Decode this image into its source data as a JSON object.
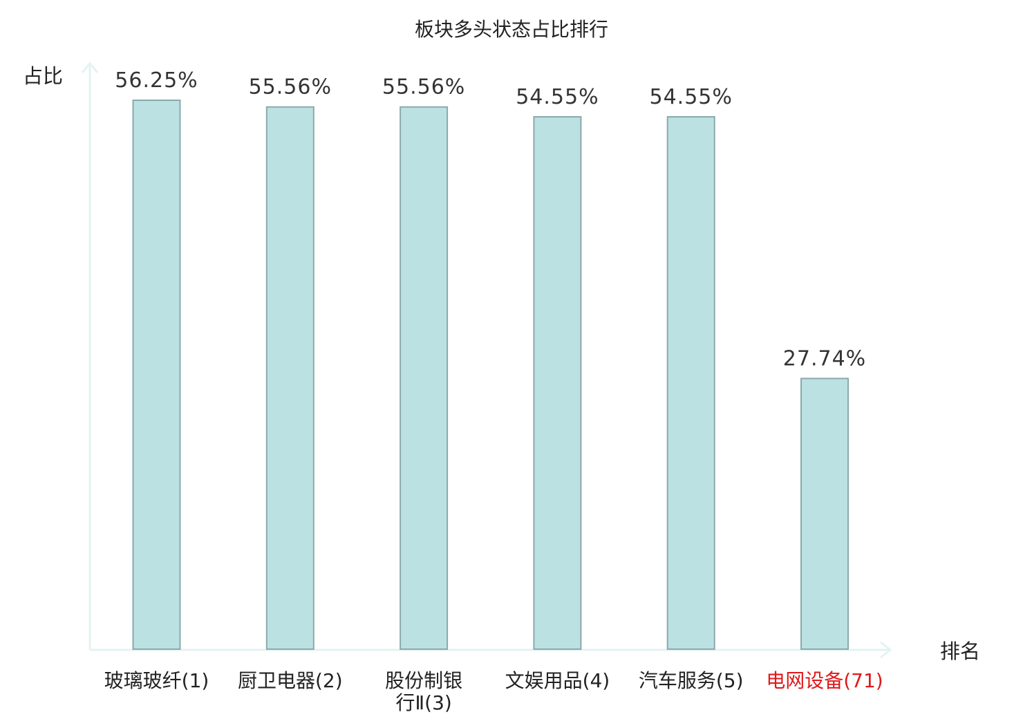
{
  "chart_data": {
    "type": "bar",
    "title": "板块多头状态占比排行",
    "ylabel": "占比",
    "xlabel": "排名",
    "categories": [
      {
        "name": [
          "玻璃玻纤(1)"
        ],
        "highlight": false
      },
      {
        "name": [
          "厨卫电器(2)"
        ],
        "highlight": false
      },
      {
        "name": [
          "股份制银",
          "行Ⅱ(3)"
        ],
        "highlight": false
      },
      {
        "name": [
          "文娱用品(4)"
        ],
        "highlight": false
      },
      {
        "name": [
          "汽车服务(5)"
        ],
        "highlight": false
      },
      {
        "name": [
          "电网设备(71)"
        ],
        "highlight": true
      }
    ],
    "values": [
      56.25,
      55.56,
      55.56,
      54.55,
      54.55,
      27.74
    ],
    "value_labels": [
      "56.25%",
      "55.56%",
      "55.56%",
      "54.55%",
      "54.55%",
      "27.74%"
    ],
    "ylim": [
      0,
      56.25
    ],
    "grid": false,
    "colors": {
      "bar_fill": "#bce1e3",
      "bar_stroke": "#8aa9ab",
      "axis": "#e3f3f2",
      "highlight_text": "#e0191b"
    }
  }
}
